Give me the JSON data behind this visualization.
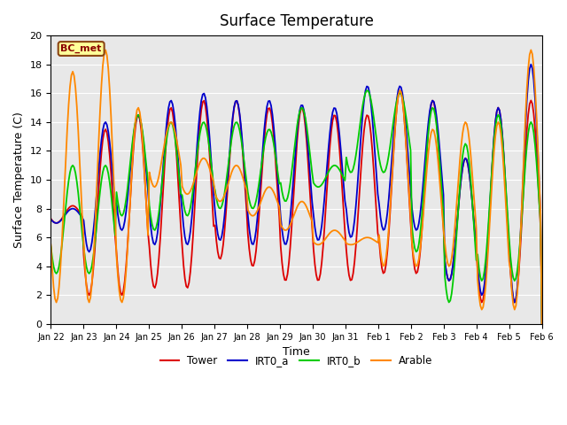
{
  "title": "Surface Temperature",
  "xlabel": "Time",
  "ylabel": "Surface Temperature (C)",
  "ylim": [
    0,
    20
  ],
  "annotation": "BC_met",
  "background_color": "#e8e8e8",
  "grid_color": "white",
  "series": {
    "Tower": {
      "color": "#dd0000",
      "lw": 1.3
    },
    "IRT0_a": {
      "color": "#0000cc",
      "lw": 1.3
    },
    "IRT0_b": {
      "color": "#00cc00",
      "lw": 1.3
    },
    "Arable": {
      "color": "#ff8800",
      "lw": 1.3
    }
  },
  "x_tick_labels": [
    "Jan 22",
    "Jan 23",
    "Jan 24",
    "Jan 25",
    "Jan 26",
    "Jan 27",
    "Jan 28",
    "Jan 29",
    "Jan 30",
    "Jan 31",
    "Feb 1",
    "Feb 2",
    "Feb 3",
    "Feb 4",
    "Feb 5",
    "Feb 6"
  ],
  "x_tick_positions": [
    0,
    1,
    2,
    3,
    4,
    5,
    6,
    7,
    8,
    9,
    10,
    11,
    12,
    13,
    14,
    15
  ],
  "legend_labels": [
    "Tower",
    "IRT0_a",
    "IRT0_b",
    "Arable"
  ]
}
